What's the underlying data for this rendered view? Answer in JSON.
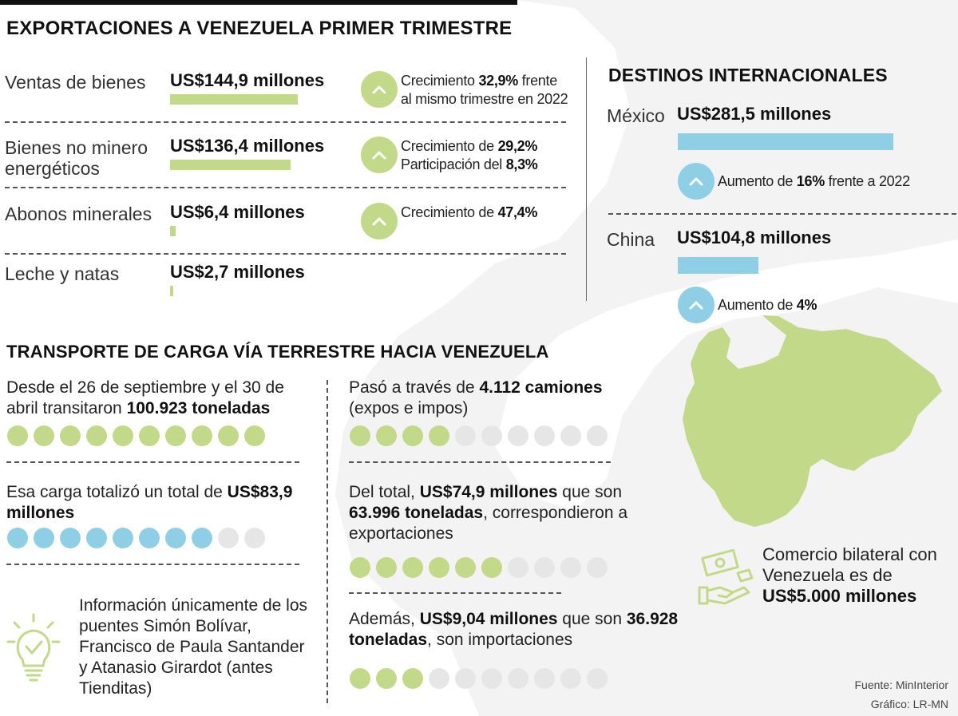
{
  "exports": {
    "title": "EXPORTACIONES A VENEZUELA PRIMER TRIMESTRE",
    "rows": [
      {
        "label": "Ventas de bienes",
        "amount": "US$144,9 millones",
        "value": 144.9,
        "note_parts": [
          {
            "t": "Crecimiento "
          },
          {
            "t": "32,9%",
            "b": true
          },
          {
            "t": " frente al mismo trimestre en 2022"
          }
        ]
      },
      {
        "label": "Bienes no minero energéticos",
        "amount": "US$136,4 millones",
        "value": 136.4,
        "note_parts": [
          {
            "t": "Crecimiento de "
          },
          {
            "t": "29,2%",
            "b": true
          },
          {
            "t": " Participación del "
          },
          {
            "t": "8,3%",
            "b": true
          }
        ]
      },
      {
        "label": "Abonos minerales",
        "amount": "US$6,4 millones",
        "value": 6.4,
        "note_parts": [
          {
            "t": "Crecimiento de "
          },
          {
            "t": "47,4%",
            "b": true
          }
        ]
      },
      {
        "label": "Leche y natas",
        "amount": "US$2,7 millones",
        "value": 2.7,
        "note_parts": []
      }
    ]
  },
  "destinations": {
    "title": "DESTINOS INTERNACIONALES",
    "items": [
      {
        "country": "México",
        "amount": "US$281,5 millones",
        "value": 281.5,
        "note_parts": [
          {
            "t": "Aumento de "
          },
          {
            "t": "16%",
            "b": true
          },
          {
            "t": " frente a 2022"
          }
        ]
      },
      {
        "country": "China",
        "amount": "US$104,8 millones",
        "value": 104.8,
        "note_parts": [
          {
            "t": "Aumento de "
          },
          {
            "t": "4%",
            "b": true
          }
        ]
      }
    ]
  },
  "transport": {
    "title": "TRANSPORTE DE CARGA VÍA TERRESTRE HACIA VENEZUELA",
    "left": [
      {
        "parts": [
          {
            "t": "Desde el 26 de septiembre y el 30 de abril transitaron "
          },
          {
            "t": "100.923 toneladas",
            "b": true
          }
        ],
        "dots_filled": 10,
        "dots_total": 10,
        "color": "#c3d98a"
      },
      {
        "parts": [
          {
            "t": "Esa carga totalizó un total de "
          },
          {
            "t": "US$83,9 millones",
            "b": true
          }
        ],
        "dots_filled": 8,
        "dots_total": 10,
        "color": "#8fcfe6"
      }
    ],
    "info": "Información únicamente de los puentes Simón Bolívar, Francisco de Paula Santander y Atanasio Girardot (antes Tienditas)",
    "right": [
      {
        "parts": [
          {
            "t": "Pasó a través de "
          },
          {
            "t": "4.112 camiones",
            "b": true
          },
          {
            "t": " (expos e impos)"
          }
        ],
        "dots_filled": 4,
        "dots_total": 10,
        "color": "#c3d98a"
      },
      {
        "parts": [
          {
            "t": "Del total, "
          },
          {
            "t": "US$74,9 millones",
            "b": true
          },
          {
            "t": " que son "
          },
          {
            "t": "63.996 toneladas",
            "b": true
          },
          {
            "t": ", corres­pondieron a exportaciones"
          }
        ],
        "dots_filled": 6,
        "dots_total": 10,
        "color": "#c3d98a"
      },
      {
        "parts": [
          {
            "t": "Además, "
          },
          {
            "t": "US$9,04 millones",
            "b": true
          },
          {
            "t": " que son "
          },
          {
            "t": "36.928 toneladas",
            "b": true
          },
          {
            "t": ", son importaciones"
          }
        ],
        "dots_filled": 3,
        "dots_total": 10,
        "color": "#c3d98a"
      }
    ]
  },
  "bilateral": {
    "parts": [
      {
        "t": "Comercio bilateral con Venezuela es de "
      },
      {
        "t": "US$5.000 millones",
        "b": true
      }
    ]
  },
  "footer": {
    "source": "Fuente: MinInterior",
    "credit": "Gráfico: LR-MN"
  },
  "colors": {
    "green": "#c3d98a",
    "blue": "#8fcfe6",
    "map_gray": "#f2f2f2"
  },
  "icons": [
    "chevron-up-icon",
    "lightbulb-check-icon",
    "handshake-money-icon",
    "venezuela-map"
  ]
}
